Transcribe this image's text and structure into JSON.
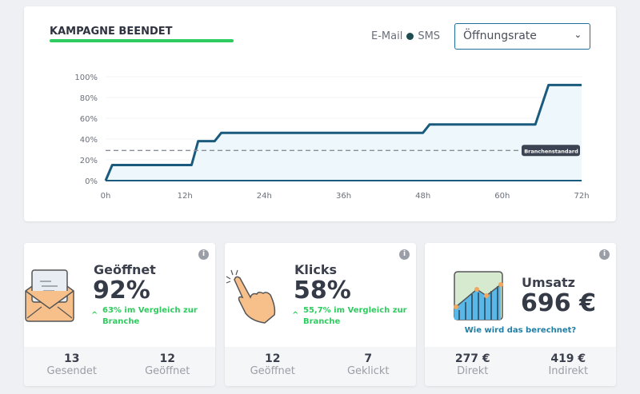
{
  "header": {
    "title": "KAMPAGNE BEENDET",
    "legend_email": "E-Mail",
    "legend_sms": "SMS",
    "select_value": "Öffnungsrate"
  },
  "colors": {
    "accent_green": "#2ecc5f",
    "line": "#1a5b7d",
    "fill": "#eef7fb",
    "link": "#1f7fa5"
  },
  "chart_data": {
    "type": "line",
    "x_unit": "h",
    "xlim": [
      0,
      72
    ],
    "ylim": [
      0,
      100
    ],
    "x_ticks": [
      "0h",
      "12h",
      "24h",
      "36h",
      "48h",
      "60h",
      "72h"
    ],
    "y_ticks": [
      "0%",
      "20%",
      "40%",
      "60%",
      "80%",
      "100%"
    ],
    "grid": true,
    "series": [
      {
        "x": [
          0,
          1,
          13,
          14,
          16.5,
          17.5,
          48,
          49,
          65,
          67,
          72
        ],
        "y": [
          0,
          15,
          15,
          38,
          38,
          46,
          46,
          54,
          54,
          92,
          92
        ]
      }
    ],
    "benchmark": {
      "label": "Branchenstandard",
      "value": 29
    }
  },
  "cards": [
    {
      "label": "Geöffnet",
      "value": "92%",
      "compare": "63% im Vergleich zur Branche",
      "icon": "envelope-icon",
      "footer": [
        {
          "n": "13",
          "l": "Gesendet"
        },
        {
          "n": "12",
          "l": "Geöffnet"
        }
      ]
    },
    {
      "label": "Klicks",
      "value": "58%",
      "compare": "55,7% im Vergleich zur Branche",
      "icon": "pointer-hand-icon",
      "footer": [
        {
          "n": "12",
          "l": "Geöffnet"
        },
        {
          "n": "7",
          "l": "Geklickt"
        }
      ]
    },
    {
      "label": "Umsatz",
      "value": "696 €",
      "link": "Wie wird das berechnet?",
      "icon": "revenue-chart-icon",
      "footer": [
        {
          "n": "277 €",
          "l": "Direkt"
        },
        {
          "n": "419 €",
          "l": "Indirekt"
        }
      ]
    }
  ],
  "info_icon": "i"
}
